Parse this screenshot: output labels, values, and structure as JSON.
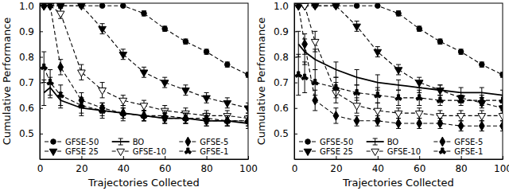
{
  "chart_data": [
    {
      "type": "line",
      "x_label": "Trajectories Collected",
      "y_label": "Cumulative Performance",
      "x": [
        2,
        5,
        10,
        20,
        30,
        40,
        50,
        60,
        70,
        80,
        90,
        100
      ],
      "xlim": [
        0,
        100
      ],
      "xticks": [
        0,
        20,
        40,
        60,
        80,
        100
      ],
      "ylim": [
        0.4,
        1.01
      ],
      "yticks": [
        0.5,
        0.6,
        0.7,
        0.8,
        0.9,
        {
          "value": 1,
          "label": "1.0"
        }
      ],
      "grid": false,
      "legend": "lower left",
      "series": [
        {
          "name": "GFSE-50",
          "color": "#000000",
          "marker": "circle",
          "line_style": "dashed",
          "values": [
            1,
            1,
            1,
            1,
            1,
            1,
            0.97,
            0.91,
            0.86,
            0.82,
            0.77,
            0.73
          ],
          "errors": [
            0,
            0,
            0,
            0,
            0,
            0,
            0.01,
            0.01,
            0.01,
            0.01,
            0.01,
            0.01
          ]
        },
        {
          "name": "GFSE 25",
          "color": "#000000",
          "marker": "triangle-down",
          "line_style": "dashed",
          "values": [
            1,
            1,
            1,
            1,
            0.91,
            0.81,
            0.74,
            0.7,
            0.67,
            0.64,
            0.62,
            0.6
          ],
          "errors": [
            0,
            0,
            0,
            0,
            0.02,
            0.02,
            0.02,
            0.02,
            0.02,
            0.02,
            0.02,
            0.02
          ]
        },
        {
          "name": "BO",
          "color": "#000000",
          "marker": "none",
          "line_style": "solid",
          "values": [
            0.66,
            0.68,
            0.63,
            0.6,
            0.59,
            0.58,
            0.57,
            0.56,
            0.56,
            0.55,
            0.55,
            0.54
          ],
          "errors": [
            0.05,
            0.04,
            0.03,
            0.03,
            0.02,
            0.02,
            0.02,
            0.02,
            0.02,
            0.02,
            0.02,
            0.02
          ]
        },
        {
          "name": "GFSE-10",
          "color": "#000000",
          "marker": "triangle-down-open",
          "line_style": "dashed",
          "values": [
            1,
            1,
            0.97,
            0.74,
            0.67,
            0.63,
            0.61,
            0.59,
            0.58,
            0.57,
            0.57,
            0.56
          ],
          "errors": [
            0,
            0,
            0.02,
            0.03,
            0.03,
            0.02,
            0.02,
            0.02,
            0.02,
            0.02,
            0.02,
            0.02
          ]
        },
        {
          "name": "GFSE-5",
          "color": "#000000",
          "marker": "diamond",
          "line_style": "dashed",
          "values": [
            1,
            1,
            0.76,
            0.63,
            0.6,
            0.58,
            0.57,
            0.56,
            0.56,
            0.55,
            0.55,
            0.55
          ],
          "errors": [
            0,
            0,
            0.03,
            0.03,
            0.02,
            0.02,
            0.02,
            0.02,
            0.02,
            0.02,
            0.02,
            0.02
          ]
        },
        {
          "name": "GFSE-1",
          "color": "#000000",
          "marker": "wye",
          "line_style": "dashed",
          "values": [
            0.76,
            0.7,
            0.65,
            0.61,
            0.59,
            0.58,
            0.57,
            0.57,
            0.56,
            0.56,
            0.55,
            0.55
          ],
          "errors": [
            0.06,
            0.05,
            0.04,
            0.03,
            0.03,
            0.03,
            0.02,
            0.02,
            0.02,
            0.02,
            0.02,
            0.02
          ]
        }
      ]
    },
    {
      "type": "line",
      "x_label": "Trajectories Collected",
      "y_label": "Cumulative Performance",
      "x": [
        2,
        5,
        10,
        20,
        30,
        40,
        50,
        60,
        70,
        80,
        90,
        100
      ],
      "xlim": [
        0,
        100
      ],
      "xticks": [
        0,
        20,
        40,
        60,
        80,
        100
      ],
      "ylim": [
        0.4,
        1.01
      ],
      "yticks": [
        0.5,
        0.6,
        0.7,
        0.8,
        0.9,
        {
          "value": 1,
          "label": "1.0"
        }
      ],
      "grid": false,
      "legend": "lower left",
      "series": [
        {
          "name": "GFSE-50",
          "color": "#000000",
          "marker": "circle",
          "line_style": "dashed",
          "values": [
            1,
            1,
            1,
            1,
            1,
            1,
            0.97,
            0.91,
            0.86,
            0.82,
            0.77,
            0.73
          ],
          "errors": [
            0,
            0,
            0,
            0,
            0,
            0,
            0.01,
            0.01,
            0.01,
            0.01,
            0.01,
            0.01
          ]
        },
        {
          "name": "GFSE 25",
          "color": "#000000",
          "marker": "triangle-down",
          "line_style": "dashed",
          "values": [
            1,
            1,
            1,
            1,
            0.92,
            0.82,
            0.75,
            0.7,
            0.67,
            0.64,
            0.62,
            0.6
          ],
          "errors": [
            0,
            0,
            0,
            0,
            0.02,
            0.02,
            0.02,
            0.02,
            0.02,
            0.02,
            0.02,
            0.02
          ]
        },
        {
          "name": "BO",
          "color": "#000000",
          "marker": "none",
          "line_style": "solid",
          "values": [
            0.85,
            0.82,
            0.79,
            0.75,
            0.72,
            0.7,
            0.69,
            0.68,
            0.67,
            0.66,
            0.66,
            0.65
          ],
          "errors": [
            0.05,
            0.05,
            0.04,
            0.03,
            0.03,
            0.03,
            0.02,
            0.02,
            0.02,
            0.02,
            0.02,
            0.02
          ]
        },
        {
          "name": "GFSE-10",
          "color": "#000000",
          "marker": "triangle-down-open",
          "line_style": "dashed",
          "values": [
            1,
            1,
            0.86,
            0.66,
            0.61,
            0.59,
            0.58,
            0.58,
            0.57,
            0.57,
            0.57,
            0.57
          ],
          "errors": [
            0,
            0,
            0.04,
            0.04,
            0.03,
            0.03,
            0.02,
            0.02,
            0.02,
            0.02,
            0.02,
            0.02
          ]
        },
        {
          "name": "GFSE-5",
          "color": "#000000",
          "marker": "diamond",
          "line_style": "dashed",
          "values": [
            1,
            0.85,
            0.63,
            0.57,
            0.55,
            0.55,
            0.54,
            0.54,
            0.54,
            0.53,
            0.53,
            0.53
          ],
          "errors": [
            0,
            0.04,
            0.04,
            0.03,
            0.02,
            0.02,
            0.02,
            0.02,
            0.02,
            0.02,
            0.02,
            0.02
          ]
        },
        {
          "name": "GFSE-1",
          "color": "#000000",
          "marker": "wye",
          "line_style": "dashed",
          "values": [
            0.73,
            0.72,
            0.7,
            0.68,
            0.66,
            0.65,
            0.64,
            0.64,
            0.63,
            0.63,
            0.63,
            0.63
          ],
          "errors": [
            0.08,
            0.06,
            0.05,
            0.04,
            0.03,
            0.03,
            0.03,
            0.03,
            0.02,
            0.02,
            0.02,
            0.02
          ]
        }
      ]
    }
  ]
}
